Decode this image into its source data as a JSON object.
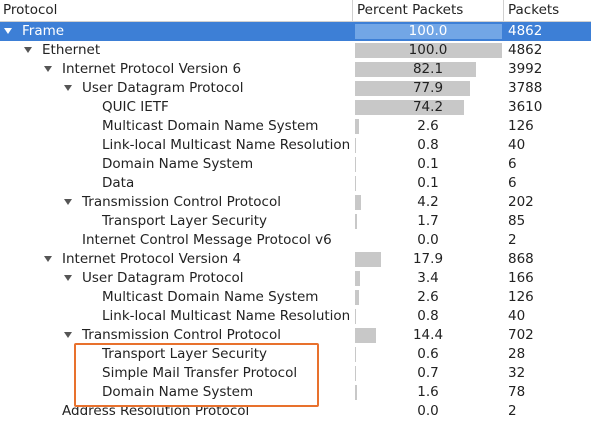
{
  "header": {
    "protocol": "Protocol",
    "percent": "Percent Packets",
    "packets": "Packets"
  },
  "tree": [
    {
      "name": "Frame",
      "percent": {
        "value": 100,
        "label": "100.0"
      },
      "packets": 4862,
      "children": [
        {
          "name": "Ethernet",
          "percent": {
            "value": 100,
            "label": "100.0"
          },
          "packets": 4862,
          "children": [
            {
              "name": "Internet Protocol Version 6",
              "percent": {
                "value": 82.1,
                "label": "82.1"
              },
              "packets": 3992,
              "children": [
                {
                  "name": "User Datagram Protocol",
                  "percent": {
                    "value": 77.9,
                    "label": "77.9"
                  },
                  "packets": 3788,
                  "children": [
                    {
                      "name": "QUIC IETF",
                      "percent": {
                        "value": 74.2,
                        "label": "74.2"
                      },
                      "packets": 3610
                    },
                    {
                      "name": "Multicast Domain Name System",
                      "percent": {
                        "value": 2.6,
                        "label": "2.6"
                      },
                      "packets": 126
                    },
                    {
                      "name": "Link-local Multicast Name Resolution",
                      "percent": {
                        "value": 0.8,
                        "label": "0.8"
                      },
                      "packets": 40
                    },
                    {
                      "name": "Domain Name System",
                      "percent": {
                        "value": 0.1,
                        "label": "0.1"
                      },
                      "packets": 6
                    },
                    {
                      "name": "Data",
                      "percent": {
                        "value": 0.1,
                        "label": "0.1"
                      },
                      "packets": 6
                    }
                  ]
                },
                {
                  "name": "Transmission Control Protocol",
                  "percent": {
                    "value": 4.2,
                    "label": "4.2"
                  },
                  "packets": 202,
                  "children": [
                    {
                      "name": "Transport Layer Security",
                      "percent": {
                        "value": 1.7,
                        "label": "1.7"
                      },
                      "packets": 85
                    }
                  ]
                },
                {
                  "name": "Internet Control Message Protocol v6",
                  "percent": {
                    "value": 0,
                    "label": "0.0"
                  },
                  "packets": 2
                }
              ]
            },
            {
              "name": "Internet Protocol Version 4",
              "percent": {
                "value": 17.9,
                "label": "17.9"
              },
              "packets": 868,
              "children": [
                {
                  "name": "User Datagram Protocol",
                  "percent": {
                    "value": 3.4,
                    "label": "3.4"
                  },
                  "packets": 166,
                  "children": [
                    {
                      "name": "Multicast Domain Name System",
                      "percent": {
                        "value": 2.6,
                        "label": "2.6"
                      },
                      "packets": 126
                    },
                    {
                      "name": "Link-local Multicast Name Resolution",
                      "percent": {
                        "value": 0.8,
                        "label": "0.8"
                      },
                      "packets": 40
                    }
                  ]
                },
                {
                  "name": "Transmission Control Protocol",
                  "percent": {
                    "value": 14.4,
                    "label": "14.4"
                  },
                  "packets": 702,
                  "children": [
                    {
                      "name": "Transport Layer Security",
                      "percent": {
                        "value": 0.6,
                        "label": "0.6"
                      },
                      "packets": 28
                    },
                    {
                      "name": "Simple Mail Transfer Protocol",
                      "percent": {
                        "value": 0.7,
                        "label": "0.7"
                      },
                      "packets": 32
                    },
                    {
                      "name": "Domain Name System",
                      "percent": {
                        "value": 1.6,
                        "label": "1.6"
                      },
                      "packets": 78
                    }
                  ]
                }
              ]
            },
            {
              "name": "Address Resolution Protocol",
              "percent": {
                "value": 0,
                "label": "0.0"
              },
              "packets": 2
            }
          ]
        }
      ]
    }
  ]
}
